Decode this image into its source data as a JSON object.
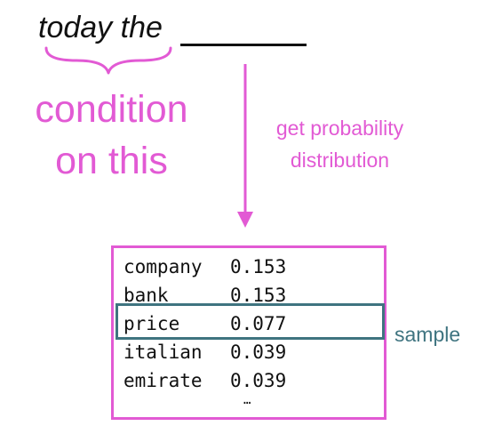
{
  "prompt": {
    "text": "today the"
  },
  "condition_label": {
    "line1": "condition",
    "line2": "on this"
  },
  "arrow_label": {
    "line1": "get probability",
    "line2": "distribution"
  },
  "distribution": {
    "rows": [
      {
        "word": "company",
        "prob": "0.153"
      },
      {
        "word": "bank",
        "prob": "0.153"
      },
      {
        "word": "price",
        "prob": "0.077"
      },
      {
        "word": "italian",
        "prob": "0.039"
      },
      {
        "word": "emirate",
        "prob": "0.039"
      }
    ],
    "ellipsis": "…"
  },
  "sample": {
    "label": "sample",
    "selected_word": "price"
  },
  "colors": {
    "accent_pink": "#e25ad4",
    "sample_teal": "#3f7480",
    "text": "#111111"
  },
  "icons": {
    "brace": "curly-brace-icon",
    "arrow": "down-arrow-icon"
  }
}
